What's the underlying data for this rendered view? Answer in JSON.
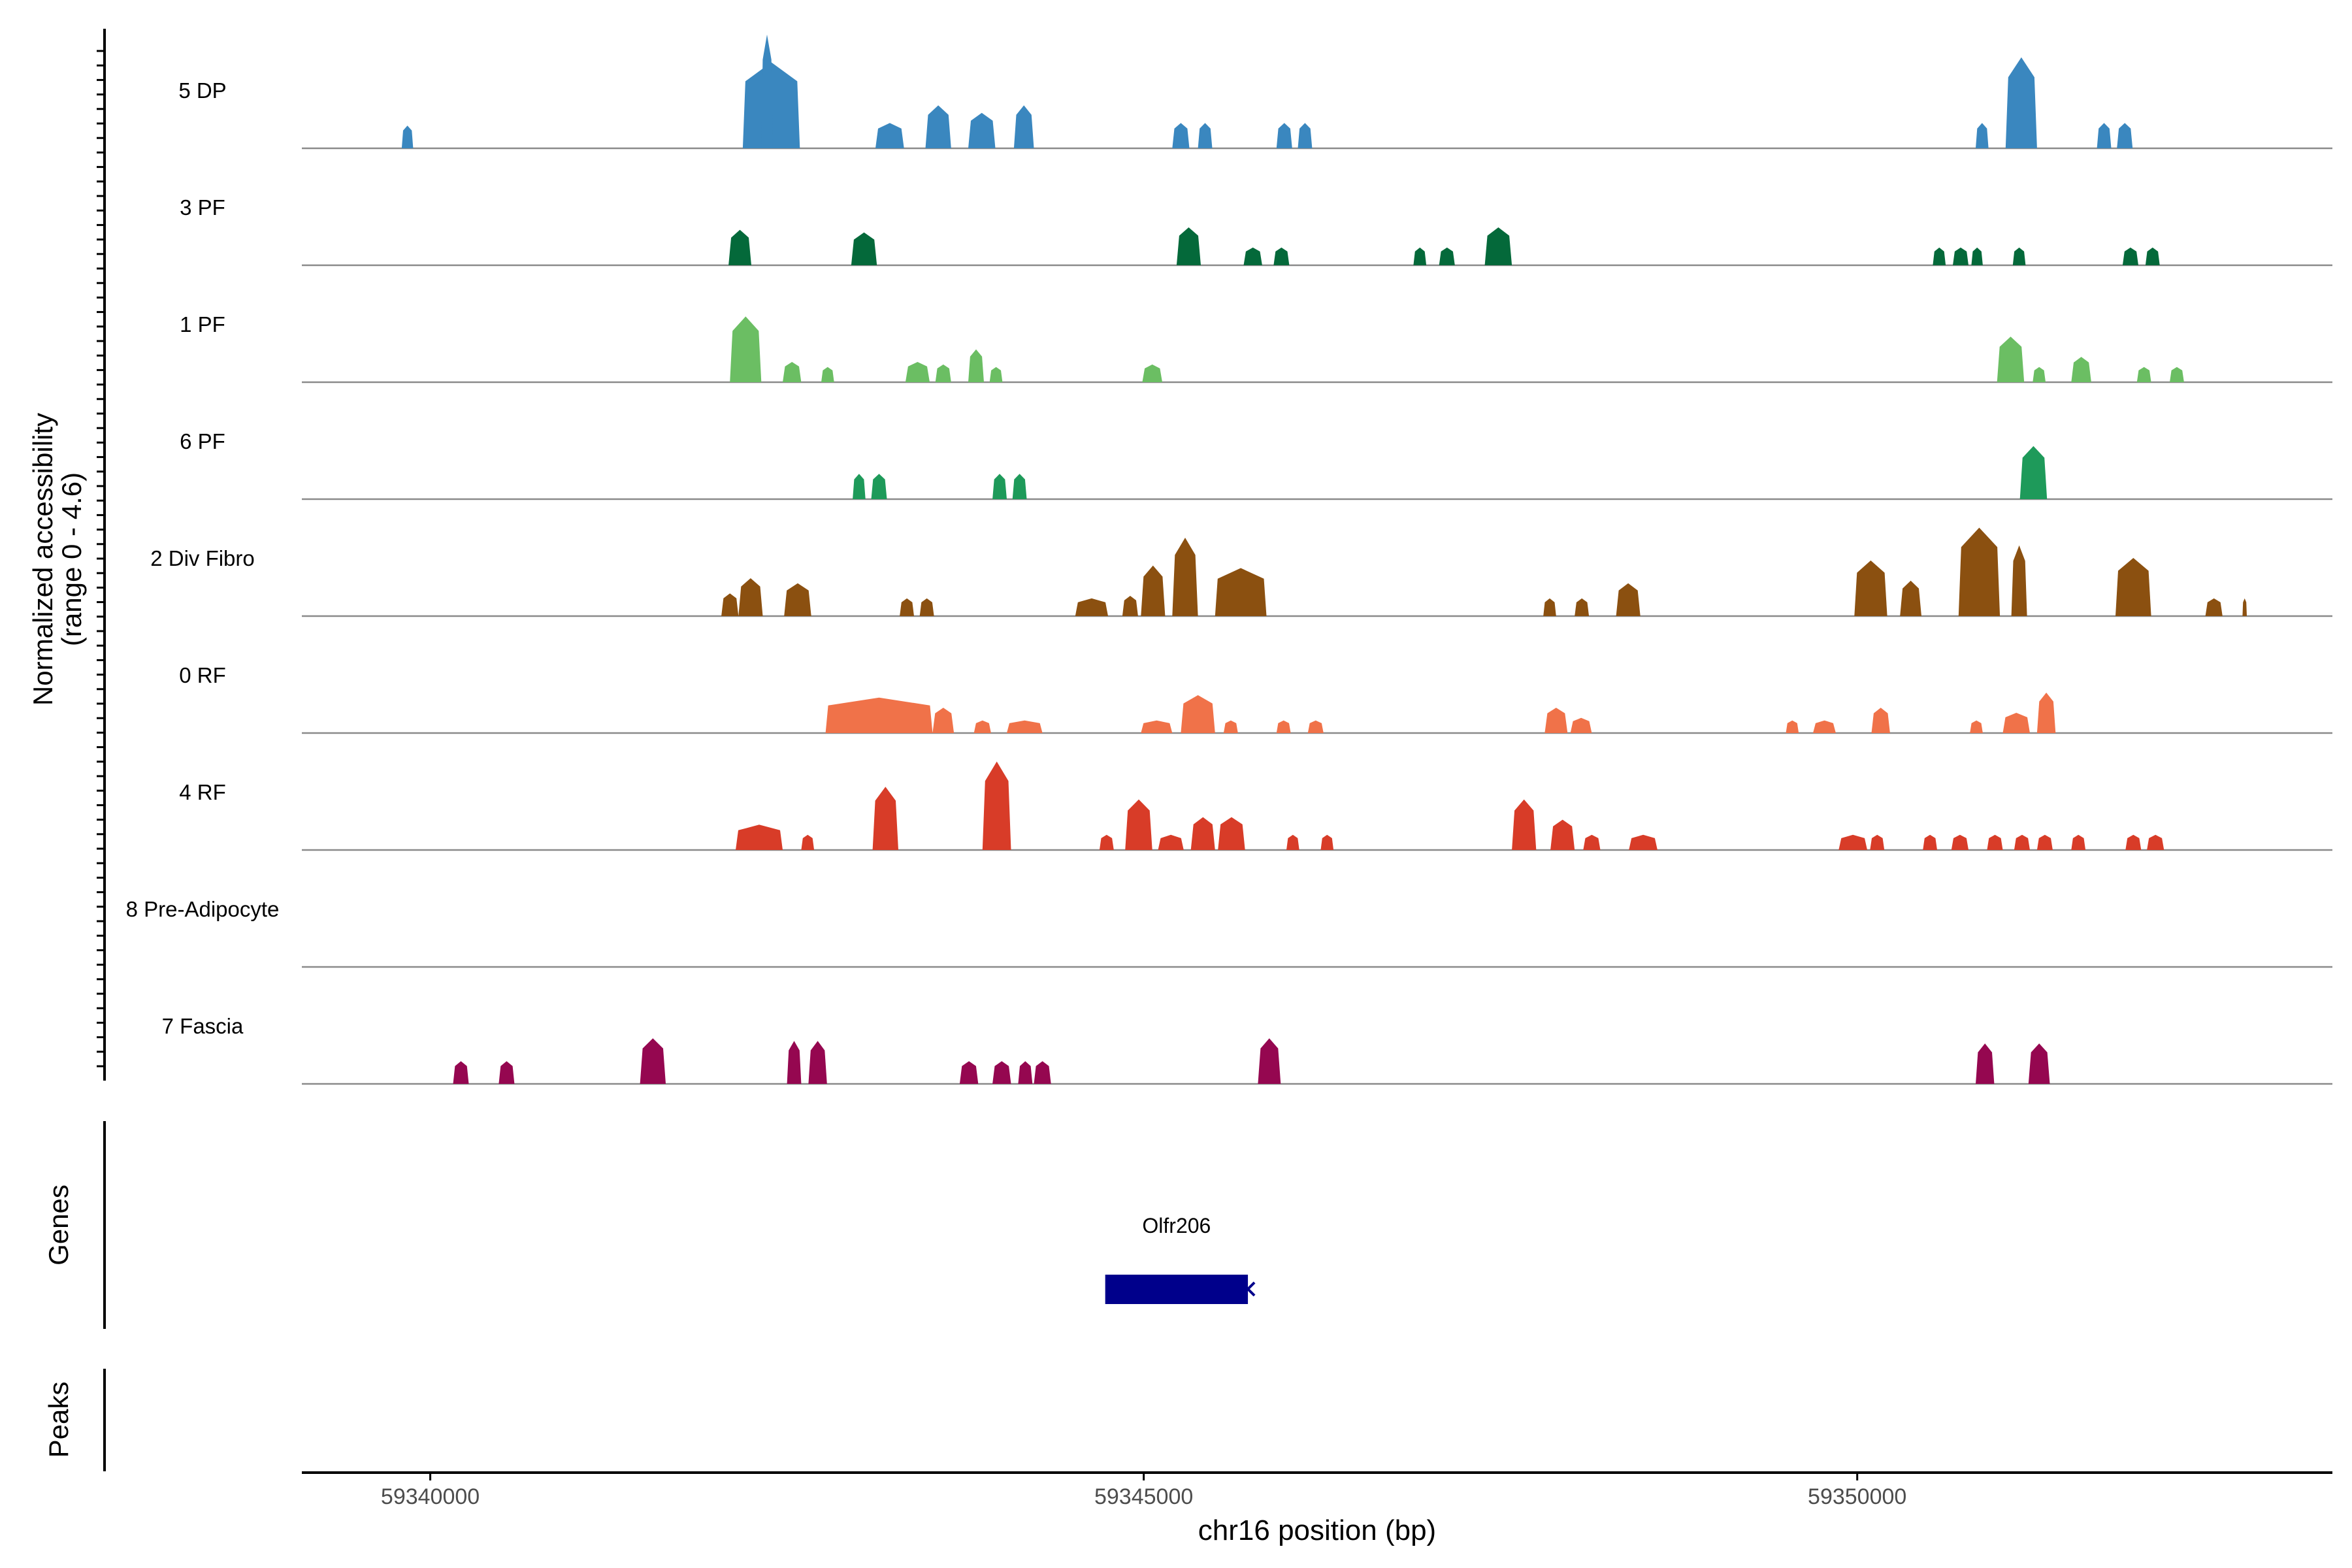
{
  "chart_data": {
    "type": "area",
    "title": "",
    "ylabel_line1": "Normalized accessibility",
    "ylabel_line2": "(range 0 - 4.6)",
    "xlabel": "chr16 position (bp)",
    "xlim": [
      59339100,
      59353330
    ],
    "xticks": [
      59340000,
      59345000,
      59350000
    ],
    "xtick_labels": [
      "59340000",
      "59345000",
      "59350000"
    ],
    "yrange": [
      0,
      4.6
    ],
    "genes_label": "Genes",
    "peaks_label": "Peaks",
    "gene": {
      "name": "Olfr206",
      "start": 59344730,
      "end": 59345730,
      "strand": "-",
      "color": "#00008B"
    },
    "tracks": [
      {
        "name": "5 DP",
        "color": "#3A87BF",
        "peaks": [
          [
            59339800,
            59339880,
            0.9
          ],
          [
            59342190,
            59342590,
            3.4
          ],
          [
            59342320,
            59342400,
            4.5
          ],
          [
            59343120,
            59343320,
            1.0
          ],
          [
            59343470,
            59343650,
            1.7
          ],
          [
            59343770,
            59343960,
            1.4
          ],
          [
            59344090,
            59344230,
            1.7
          ],
          [
            59345200,
            59345320,
            1.0
          ],
          [
            59345380,
            59345480,
            1.0
          ],
          [
            59345930,
            59346040,
            1.0
          ],
          [
            59346080,
            59346180,
            1.0
          ],
          [
            59350830,
            59350920,
            1.0
          ],
          [
            59351040,
            59351260,
            3.6
          ],
          [
            59351680,
            59351780,
            1.0
          ],
          [
            59351820,
            59351930,
            1.0
          ]
        ]
      },
      {
        "name": "3 PF",
        "color": "#04693A",
        "peaks": [
          [
            59342090,
            59342250,
            1.4
          ],
          [
            59342950,
            59343130,
            1.3
          ],
          [
            59345230,
            59345400,
            1.5
          ],
          [
            59345700,
            59345830,
            0.7
          ],
          [
            59345910,
            59346020,
            0.7
          ],
          [
            59346890,
            59346980,
            0.7
          ],
          [
            59347070,
            59347180,
            0.7
          ],
          [
            59347390,
            59347580,
            1.5
          ],
          [
            59350530,
            59350620,
            0.7
          ],
          [
            59350670,
            59350780,
            0.7
          ],
          [
            59350800,
            59350880,
            0.7
          ],
          [
            59351090,
            59351180,
            0.7
          ],
          [
            59351860,
            59351970,
            0.7
          ],
          [
            59352020,
            59352120,
            0.7
          ]
        ]
      },
      {
        "name": "1 PF",
        "color": "#6BBE63",
        "peaks": [
          [
            59342100,
            59342320,
            2.6
          ],
          [
            59342470,
            59342600,
            0.8
          ],
          [
            59342740,
            59342830,
            0.6
          ],
          [
            59343330,
            59343500,
            0.8
          ],
          [
            59343540,
            59343650,
            0.7
          ],
          [
            59343770,
            59343880,
            1.3
          ],
          [
            59343920,
            59344010,
            0.6
          ],
          [
            59344990,
            59345130,
            0.7
          ],
          [
            59350980,
            59351170,
            1.8
          ],
          [
            59351230,
            59351320,
            0.6
          ],
          [
            59351500,
            59351640,
            1.0
          ],
          [
            59351960,
            59352060,
            0.6
          ],
          [
            59352190,
            59352290,
            0.6
          ]
        ]
      },
      {
        "name": "6 PF",
        "color": "#1E9A5A",
        "peaks": [
          [
            59342960,
            59343050,
            1.0
          ],
          [
            59343090,
            59343200,
            1.0
          ],
          [
            59343940,
            59344040,
            1.0
          ],
          [
            59344080,
            59344180,
            1.0
          ],
          [
            59351140,
            59351330,
            2.1
          ]
        ]
      },
      {
        "name": "2 Div Fibro",
        "color": "#8B5010",
        "peaks": [
          [
            59342040,
            59342160,
            0.9
          ],
          [
            59342160,
            59342330,
            1.5
          ],
          [
            59342480,
            59342670,
            1.3
          ],
          [
            59343290,
            59343390,
            0.7
          ],
          [
            59343430,
            59343530,
            0.7
          ],
          [
            59344520,
            59344750,
            0.7
          ],
          [
            59344850,
            59344960,
            0.8
          ],
          [
            59344980,
            59345150,
            2.0
          ],
          [
            59345200,
            59345380,
            3.1
          ],
          [
            59345500,
            59345860,
            1.9
          ],
          [
            59347800,
            59347890,
            0.7
          ],
          [
            59348020,
            59348120,
            0.7
          ],
          [
            59348310,
            59348480,
            1.3
          ],
          [
            59349980,
            59350210,
            2.2
          ],
          [
            59350300,
            59350450,
            1.4
          ],
          [
            59350710,
            59351000,
            3.5
          ],
          [
            59351080,
            59351190,
            2.8
          ],
          [
            59351810,
            59352060,
            2.3
          ],
          [
            59352440,
            59352560,
            0.7
          ],
          [
            59352700,
            59352730,
            0.7
          ]
        ]
      },
      {
        "name": "0 RF",
        "color": "#F07249",
        "peaks": [
          [
            59342770,
            59343520,
            1.4
          ],
          [
            59343520,
            59343670,
            1.0
          ],
          [
            59343810,
            59343930,
            0.5
          ],
          [
            59344040,
            59344290,
            0.5
          ],
          [
            59344980,
            59345200,
            0.5
          ],
          [
            59345260,
            59345500,
            1.5
          ],
          [
            59345560,
            59345660,
            0.5
          ],
          [
            59345930,
            59346030,
            0.5
          ],
          [
            59346150,
            59346260,
            0.5
          ],
          [
            59347810,
            59347970,
            1.0
          ],
          [
            59347990,
            59348140,
            0.6
          ],
          [
            59349500,
            59349590,
            0.5
          ],
          [
            59349690,
            59349850,
            0.5
          ],
          [
            59350100,
            59350230,
            1.0
          ],
          [
            59350790,
            59350880,
            0.5
          ],
          [
            59351020,
            59351210,
            0.8
          ],
          [
            59351260,
            59351390,
            1.6
          ]
        ]
      },
      {
        "name": "4 RF",
        "color": "#D83C28",
        "peaks": [
          [
            59342140,
            59342470,
            1.0
          ],
          [
            59342600,
            59342690,
            0.6
          ],
          [
            59343100,
            59343280,
            2.5
          ],
          [
            59343870,
            59344070,
            3.5
          ],
          [
            59344690,
            59344790,
            0.6
          ],
          [
            59344870,
            59345060,
            2.0
          ],
          [
            59345100,
            59345280,
            0.6
          ],
          [
            59345330,
            59345500,
            1.3
          ],
          [
            59345520,
            59345710,
            1.3
          ],
          [
            59346000,
            59346090,
            0.6
          ],
          [
            59346240,
            59346330,
            0.6
          ],
          [
            59347580,
            59347750,
            2.0
          ],
          [
            59347850,
            59348020,
            1.2
          ],
          [
            59348080,
            59348200,
            0.6
          ],
          [
            59348400,
            59348600,
            0.6
          ],
          [
            59349870,
            59350070,
            0.6
          ],
          [
            59350090,
            59350190,
            0.6
          ],
          [
            59350460,
            59350560,
            0.6
          ],
          [
            59350660,
            59350780,
            0.6
          ],
          [
            59350910,
            59351020,
            0.6
          ],
          [
            59351100,
            59351210,
            0.6
          ],
          [
            59351260,
            59351370,
            0.6
          ],
          [
            59351500,
            59351600,
            0.6
          ],
          [
            59351880,
            59351990,
            0.6
          ],
          [
            59352030,
            59352150,
            0.6
          ]
        ]
      },
      {
        "name": "8 Pre-Adipocyte",
        "color": "#B36830",
        "peaks": []
      },
      {
        "name": "7 Fascia",
        "color": "#950750",
        "peaks": [
          [
            59340160,
            59340270,
            0.9
          ],
          [
            59340480,
            59340590,
            0.9
          ],
          [
            59341470,
            59341650,
            1.8
          ],
          [
            59342500,
            59342600,
            1.7
          ],
          [
            59342650,
            59342780,
            1.7
          ],
          [
            59343710,
            59343840,
            0.9
          ],
          [
            59343940,
            59344070,
            0.9
          ],
          [
            59344120,
            59344220,
            0.9
          ],
          [
            59344230,
            59344350,
            0.9
          ],
          [
            59345800,
            59345960,
            1.8
          ],
          [
            59350830,
            59350960,
            1.6
          ],
          [
            59351200,
            59351350,
            1.6
          ]
        ]
      }
    ]
  }
}
